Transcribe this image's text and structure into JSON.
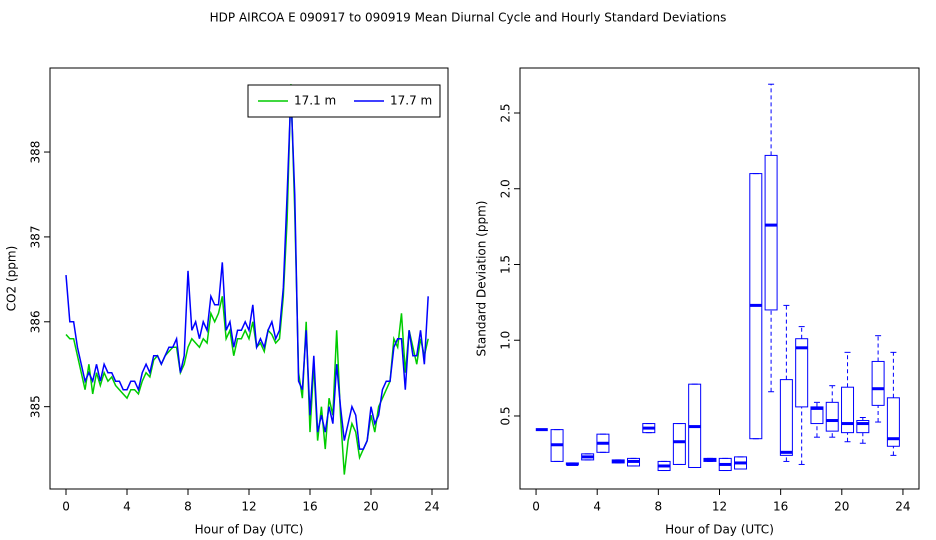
{
  "title": "HDP   AIRCOA E   090917 to 090919   Mean Diurnal Cycle and Hourly Standard Deviations",
  "chart_data": [
    {
      "type": "line",
      "xlabel": "Hour of Day (UTC)",
      "ylabel": "CO2 (ppm)",
      "xlim": [
        -1.05,
        25.05
      ],
      "xticks": [
        0,
        4,
        8,
        12,
        16,
        20,
        24
      ],
      "ylim": [
        384.03,
        388.99
      ],
      "yticks": [
        385,
        386,
        387,
        388
      ],
      "legend": "topright",
      "x": [
        0,
        0.25,
        0.5,
        0.75,
        1,
        1.25,
        1.5,
        1.75,
        2,
        2.25,
        2.5,
        2.75,
        3,
        3.25,
        3.5,
        3.75,
        4,
        4.25,
        4.5,
        4.75,
        5,
        5.25,
        5.5,
        5.75,
        6,
        6.25,
        6.5,
        6.75,
        7,
        7.25,
        7.5,
        7.75,
        8,
        8.25,
        8.5,
        8.75,
        9,
        9.25,
        9.5,
        9.75,
        10,
        10.25,
        10.5,
        10.75,
        11,
        11.25,
        11.5,
        11.75,
        12,
        12.25,
        12.5,
        12.75,
        13,
        13.25,
        13.5,
        13.75,
        14,
        14.25,
        14.5,
        14.75,
        15,
        15.25,
        15.5,
        15.75,
        16,
        16.25,
        16.5,
        16.75,
        17,
        17.25,
        17.5,
        17.75,
        18,
        18.25,
        18.5,
        18.75,
        19,
        19.25,
        19.5,
        19.75,
        20,
        20.25,
        20.5,
        20.75,
        21,
        21.25,
        21.5,
        21.75,
        22,
        22.25,
        22.5,
        22.75,
        23,
        23.25,
        23.5,
        23.75
      ],
      "series": [
        {
          "name": "17.1 m",
          "color": "#00cc00",
          "values": [
            385.85,
            385.8,
            385.8,
            385.6,
            385.4,
            385.2,
            385.5,
            385.15,
            385.4,
            385.25,
            385.4,
            385.3,
            385.35,
            385.25,
            385.2,
            385.15,
            385.1,
            385.2,
            385.2,
            385.15,
            385.3,
            385.4,
            385.35,
            385.55,
            385.6,
            385.5,
            385.6,
            385.65,
            385.7,
            385.7,
            385.4,
            385.5,
            385.7,
            385.8,
            385.75,
            385.7,
            385.8,
            385.75,
            386.1,
            386.0,
            386.1,
            386.3,
            385.8,
            385.9,
            385.6,
            385.8,
            385.8,
            385.9,
            385.8,
            386.0,
            385.7,
            385.75,
            385.65,
            385.9,
            385.85,
            385.75,
            385.8,
            386.3,
            387.2,
            388.8,
            387.3,
            385.4,
            385.1,
            386.0,
            384.7,
            385.5,
            384.6,
            385.0,
            384.5,
            385.1,
            384.9,
            385.9,
            384.9,
            384.2,
            384.6,
            384.8,
            384.7,
            384.4,
            384.5,
            384.6,
            384.9,
            384.7,
            385.0,
            385.1,
            385.2,
            385.3,
            385.8,
            385.7,
            386.1,
            385.4,
            385.9,
            385.7,
            385.5,
            385.8,
            385.6,
            385.8
          ]
        },
        {
          "name": "17.7 m",
          "color": "#0000ff",
          "values": [
            386.55,
            386.0,
            386.0,
            385.7,
            385.5,
            385.3,
            385.4,
            385.3,
            385.5,
            385.3,
            385.5,
            385.4,
            385.4,
            385.3,
            385.3,
            385.2,
            385.2,
            385.3,
            385.3,
            385.2,
            385.4,
            385.5,
            385.4,
            385.6,
            385.6,
            385.5,
            385.6,
            385.7,
            385.7,
            385.8,
            385.4,
            385.6,
            386.6,
            385.9,
            386.0,
            385.8,
            386.0,
            385.9,
            386.3,
            386.2,
            386.2,
            386.7,
            385.9,
            386.0,
            385.7,
            385.9,
            385.9,
            386.0,
            385.9,
            386.2,
            385.7,
            385.8,
            385.7,
            385.9,
            386.0,
            385.8,
            385.9,
            386.4,
            387.5,
            388.7,
            387.5,
            385.3,
            385.2,
            385.9,
            384.9,
            385.6,
            384.7,
            384.9,
            384.7,
            385.0,
            384.8,
            385.5,
            385.0,
            384.6,
            384.8,
            385.0,
            384.9,
            384.5,
            384.5,
            384.6,
            385.0,
            384.8,
            384.9,
            385.2,
            385.3,
            385.3,
            385.7,
            385.8,
            385.8,
            385.2,
            385.9,
            385.6,
            385.6,
            385.9,
            385.5,
            386.3
          ]
        }
      ]
    },
    {
      "type": "boxplot",
      "xlabel": "Hour of Day (UTC)",
      "ylabel": "Standard Deviation (ppm)",
      "xlim": [
        -1.05,
        25.05
      ],
      "xticks": [
        0,
        4,
        8,
        12,
        16,
        20,
        24
      ],
      "ylim": [
        0.018,
        2.797
      ],
      "yticks": [
        0.5,
        {
          "value": 1,
          "label": "1.0"
        },
        1.5,
        {
          "value": 2,
          "label": "2.0"
        },
        2.5
      ],
      "color": "#0000ff",
      "x": [
        0.375,
        1.375,
        2.375,
        3.375,
        4.375,
        5.375,
        6.375,
        7.375,
        8.375,
        9.375,
        10.375,
        11.375,
        12.375,
        13.375,
        14.375,
        15.375,
        16.375,
        17.375,
        18.375,
        19.375,
        20.375,
        21.375,
        22.375,
        23.375
      ],
      "low": [
        0.41,
        0.2,
        0.18,
        0.21,
        0.26,
        0.19,
        0.17,
        0.39,
        0.14,
        0.18,
        0.16,
        0.2,
        0.14,
        0.15,
        0.35,
        0.66,
        0.2,
        0.18,
        0.36,
        0.36,
        0.33,
        0.32,
        0.46,
        0.24
      ],
      "q1": [
        0.41,
        0.2,
        0.18,
        0.21,
        0.26,
        0.19,
        0.17,
        0.39,
        0.14,
        0.18,
        0.16,
        0.2,
        0.14,
        0.15,
        0.35,
        1.2,
        0.24,
        0.56,
        0.45,
        0.4,
        0.39,
        0.39,
        0.57,
        0.3
      ],
      "median": [
        0.41,
        0.31,
        0.18,
        0.23,
        0.32,
        0.2,
        0.2,
        0.42,
        0.17,
        0.33,
        0.43,
        0.21,
        0.18,
        0.19,
        1.23,
        1.76,
        0.26,
        0.95,
        0.55,
        0.47,
        0.45,
        0.45,
        0.68,
        0.35
      ],
      "q3": [
        0.41,
        0.41,
        0.19,
        0.25,
        0.38,
        0.21,
        0.22,
        0.45,
        0.2,
        0.45,
        0.71,
        0.22,
        0.22,
        0.23,
        2.1,
        2.22,
        0.74,
        1.01,
        0.56,
        0.59,
        0.69,
        0.47,
        0.86,
        0.62
      ],
      "high": [
        0.41,
        0.41,
        0.19,
        0.25,
        0.38,
        0.21,
        0.22,
        0.45,
        0.2,
        0.45,
        0.71,
        0.22,
        0.22,
        0.23,
        2.1,
        2.69,
        1.23,
        1.09,
        0.59,
        0.7,
        0.92,
        0.49,
        1.03,
        0.92
      ]
    }
  ]
}
